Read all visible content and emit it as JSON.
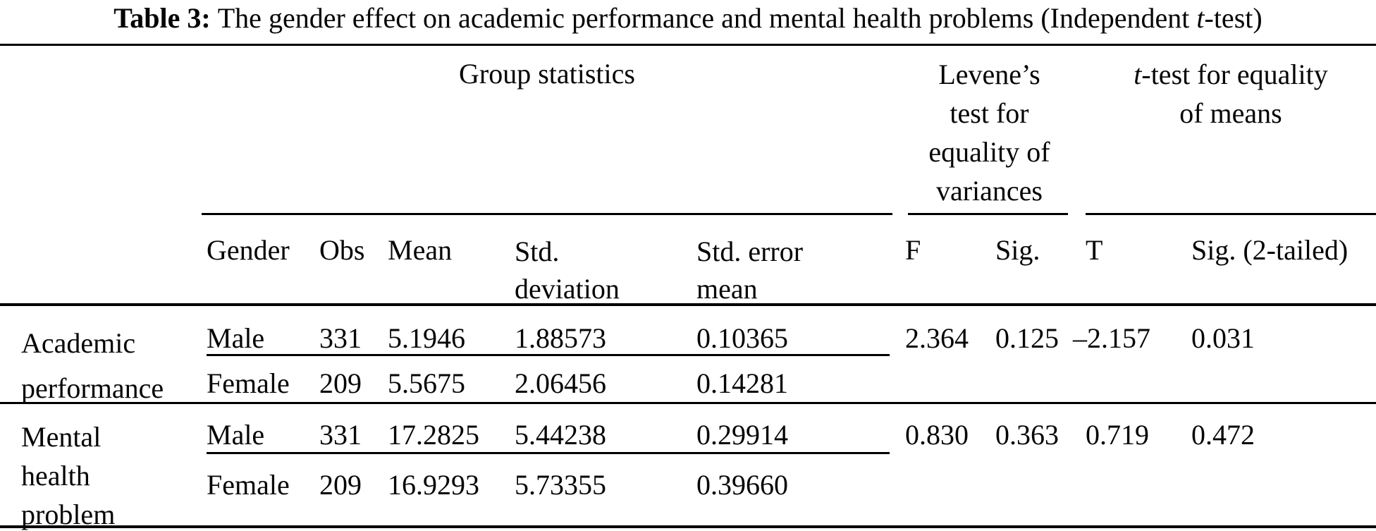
{
  "title": {
    "label": "Table 3:",
    "rest_before_italic": "The gender effect on academic performance and mental health problems (Independent ",
    "italic": "t",
    "rest_after_italic": "-test)"
  },
  "spanners": {
    "group_stats": "Group statistics",
    "levene_lines": [
      "Levene’s",
      "test for",
      "equality of",
      "variances"
    ],
    "ttest": {
      "italic": "t",
      "line1_rest": "-test for equality",
      "line2": "of means"
    }
  },
  "columns": {
    "gender": "Gender",
    "obs": "Obs",
    "mean": "Mean",
    "std_dev_lines": [
      "Std.",
      "deviation"
    ],
    "std_err_lines": [
      "Std. error",
      "mean"
    ],
    "f": "F",
    "sig": "Sig.",
    "t": "T",
    "sig2": "Sig. (2-tailed)"
  },
  "rows": [
    {
      "label_lines": [
        "Academic",
        "performance"
      ],
      "male": {
        "gender": "Male",
        "obs": "331",
        "mean": "5.1946",
        "std_dev": "1.88573",
        "std_err": "0.10365"
      },
      "female": {
        "gender": "Female",
        "obs": "209",
        "mean": "5.5675",
        "std_dev": "2.06456",
        "std_err": "0.14281"
      },
      "f": "2.364",
      "sig": "0.125",
      "t": "–2.157",
      "sig2": "0.031"
    },
    {
      "label_lines": [
        "Mental",
        "health",
        "problem"
      ],
      "male": {
        "gender": "Male",
        "obs": "331",
        "mean": "17.2825",
        "std_dev": "5.44238",
        "std_err": "0.29914"
      },
      "female": {
        "gender": "Female",
        "obs": "209",
        "mean": "16.9293",
        "std_dev": "5.73355",
        "std_err": "0.39660"
      },
      "f": "0.830",
      "sig": "0.363",
      "t": "0.719",
      "sig2": "0.472"
    }
  ],
  "colors": {
    "text": "#050505",
    "rule": "#000000",
    "background": "#ffffff"
  }
}
